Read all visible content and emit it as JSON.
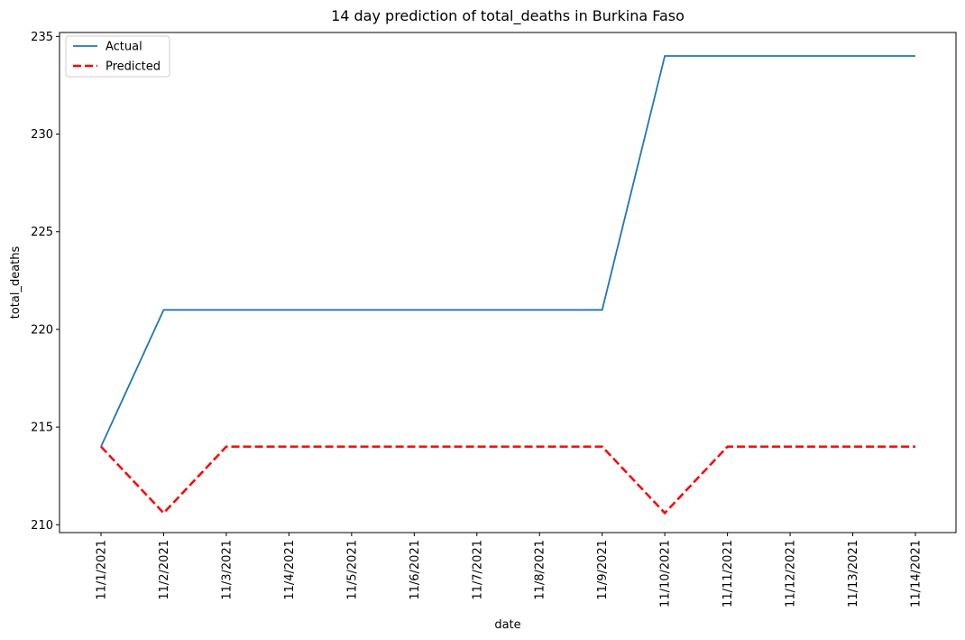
{
  "chart_data": {
    "type": "line",
    "title": "14 day prediction of total_deaths in Burkina Faso",
    "xlabel": "date",
    "ylabel": "total_deaths",
    "categories": [
      "11/1/2021",
      "11/2/2021",
      "11/3/2021",
      "11/4/2021",
      "11/5/2021",
      "11/6/2021",
      "11/7/2021",
      "11/8/2021",
      "11/9/2021",
      "11/10/2021",
      "11/11/2021",
      "11/12/2021",
      "11/13/2021",
      "11/14/2021"
    ],
    "series": [
      {
        "name": "Actual",
        "color": "#1f77b4",
        "style": "solid",
        "values": [
          214,
          221,
          221,
          221,
          221,
          221,
          221,
          221,
          221,
          234,
          234,
          234,
          234,
          234
        ]
      },
      {
        "name": "Predicted",
        "color": "#ff0000",
        "style": "dashed",
        "values": [
          214,
          210.6,
          214,
          214,
          214,
          214,
          214,
          214,
          214,
          210.6,
          214,
          214,
          214,
          214
        ]
      }
    ],
    "ylim": [
      209.6,
      235.2
    ],
    "yticks": [
      210,
      215,
      220,
      225,
      230,
      235
    ],
    "legend_position": "top-left",
    "grid": false
  }
}
